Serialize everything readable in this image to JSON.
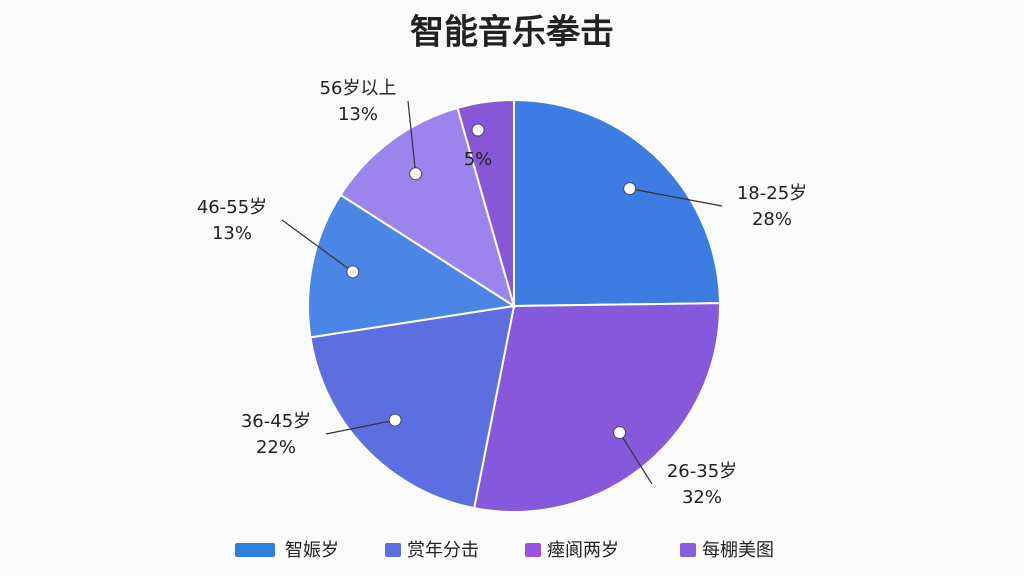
{
  "chart_data": {
    "type": "pie",
    "title": "智能音乐拳击",
    "categories": [
      "18-25岁",
      "26-35岁",
      "36-45岁",
      "46-55岁",
      "56岁以上",
      null
    ],
    "values": [
      28,
      32,
      22,
      13,
      13,
      5
    ],
    "value_labels": [
      "28%",
      "32%",
      "22%",
      "13%",
      "13%",
      "5%"
    ],
    "colors": [
      "#3d7ce2",
      "#8558dc",
      "#5d6fe0",
      "#4c86e4",
      "#9c84ee",
      "#8757d8"
    ],
    "legend": [
      {
        "label": "智娠岁",
        "color": "#2f80dc"
      },
      {
        "label": "赏年分击",
        "color": "#5b6fe0"
      },
      {
        "label": "瘞阆两岁",
        "color": "#9a50e0"
      },
      {
        "label": "每棚美图",
        "color": "#8a5ae0"
      }
    ]
  }
}
